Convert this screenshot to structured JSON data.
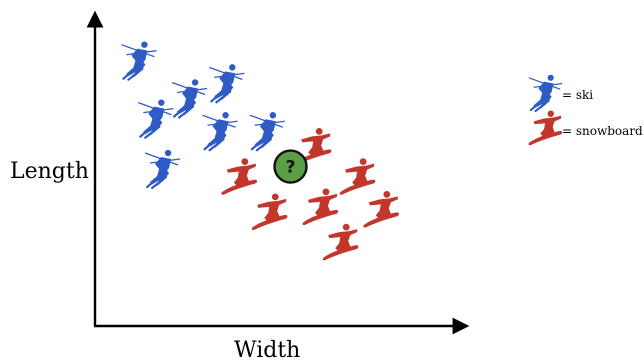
{
  "chart_data": {
    "type": "scatter",
    "xlabel": "Width",
    "ylabel": "Length",
    "xlim": [
      0,
      100
    ],
    "ylim": [
      0,
      100
    ],
    "colors": {
      "ski": "#2f5cc4",
      "snowboard": "#c2362b",
      "unknown": "#5a9e46"
    },
    "series": [
      {
        "name": "ski",
        "points": [
          {
            "x": 9,
            "y": 91
          },
          {
            "x": 24,
            "y": 76
          },
          {
            "x": 35,
            "y": 82
          },
          {
            "x": 14,
            "y": 68
          },
          {
            "x": 33,
            "y": 63
          },
          {
            "x": 47,
            "y": 63
          },
          {
            "x": 16,
            "y": 48
          }
        ]
      },
      {
        "name": "snowboard",
        "points": [
          {
            "x": 61,
            "y": 57
          },
          {
            "x": 39,
            "y": 45
          },
          {
            "x": 74,
            "y": 45
          },
          {
            "x": 48,
            "y": 31
          },
          {
            "x": 63,
            "y": 33
          },
          {
            "x": 81,
            "y": 32
          },
          {
            "x": 69,
            "y": 19
          }
        ]
      },
      {
        "name": "unknown",
        "points": [
          {
            "x": 54,
            "y": 49,
            "label": "?"
          }
        ]
      }
    ],
    "legend": {
      "placement": "right",
      "entries": [
        {
          "icon": "skier-icon",
          "label": "= ski"
        },
        {
          "icon": "snowboarder-icon",
          "label": "= snowboard"
        }
      ]
    },
    "grid": false
  }
}
